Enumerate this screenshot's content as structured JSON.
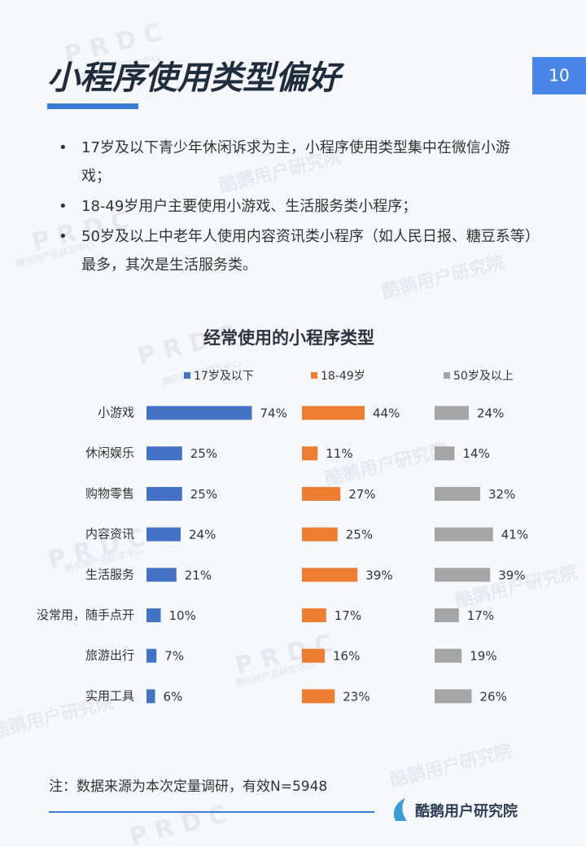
{
  "header": {
    "title": "小程序使用类型偏好",
    "page_number": "10"
  },
  "bullets": [
    "17岁及以下青少年休闲诉求为主，小程序使用类型集中在微信小游戏；",
    "18-49岁用户主要使用小游戏、生活服务类小程序；",
    "50岁及以上中老年人使用内容资讯类小程序（如人民日报、糖豆系等）最多，其次是生活服务类。"
  ],
  "chart_data": {
    "type": "bar",
    "title": "经常使用的小程序类型",
    "categories": [
      "小游戏",
      "休闲娱乐",
      "购物零售",
      "内容资讯",
      "生活服务",
      "没常用，随手点开",
      "旅游出行",
      "实用工具"
    ],
    "series": [
      {
        "name": "17岁及以下",
        "color": "#4472c4",
        "values": [
          74,
          25,
          25,
          24,
          21,
          10,
          7,
          6
        ],
        "value_labels": [
          "74%",
          "25%",
          "25%",
          "24%",
          "21%",
          "10%",
          "7%",
          "6%"
        ]
      },
      {
        "name": "18-49岁",
        "color": "#ed7d31",
        "values": [
          44,
          11,
          27,
          25,
          39,
          17,
          16,
          23
        ],
        "value_labels": [
          "44%",
          "11%",
          "27%",
          "25%",
          "39%",
          "17%",
          "16%",
          "23%"
        ]
      },
      {
        "name": "50岁及以上",
        "color": "#a5a5a5",
        "values": [
          24,
          14,
          32,
          41,
          39,
          17,
          19,
          26
        ],
        "value_labels": [
          "24%",
          "14%",
          "32%",
          "41%",
          "39%",
          "17%",
          "19%",
          "26%"
        ]
      }
    ]
  },
  "note": "注：数据来源为本次定量调研，有效N=5948",
  "brand": "酷鹅用户研究院",
  "watermarks": [
    "PRDC",
    "腾讯网产品研发中心",
    "酷鹅用户研究院"
  ]
}
